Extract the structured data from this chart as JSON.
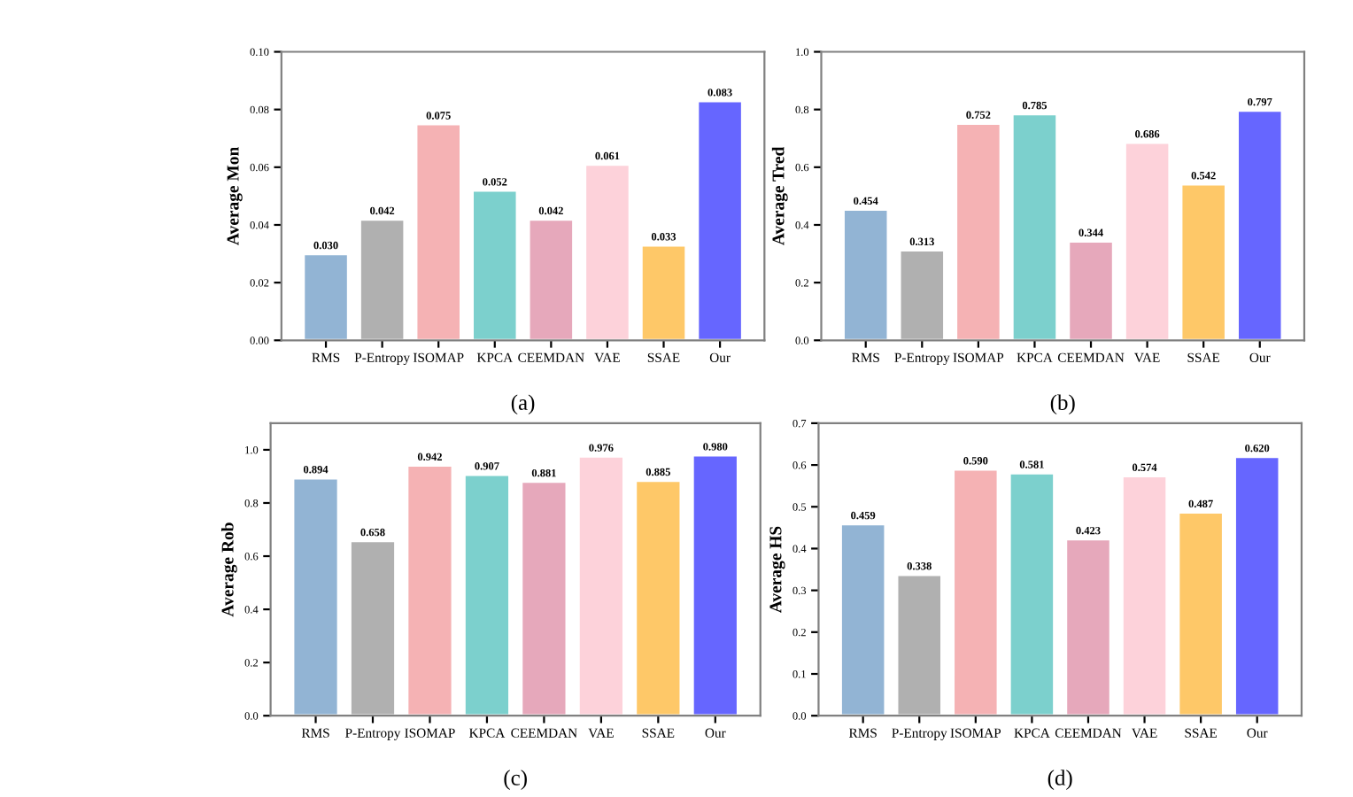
{
  "chart_data": [
    {
      "type": "bar",
      "xlabel": "(a)",
      "ylabel": "Average Mon",
      "categories": [
        "RMS",
        "P-Entropy",
        "ISOMAP",
        "KPCA",
        "CEEMDAN",
        "VAE",
        "SSAE",
        "Our"
      ],
      "values": [
        0.03,
        0.042,
        0.075,
        0.052,
        0.042,
        0.061,
        0.033,
        0.083
      ],
      "colors": [
        "#92b4d4",
        "#b0b0b0",
        "#f5b2b4",
        "#7cd0cd",
        "#e6a8bb",
        "#fdd2da",
        "#fec868",
        "#6666ff"
      ],
      "ylim": [
        0,
        0.1
      ],
      "yticks": [
        {
          "value": 0,
          "label": "0.00"
        },
        0.02,
        0.04,
        0.06,
        0.08,
        {
          "value": 0.1,
          "label": "0.10"
        }
      ],
      "value_labels": [
        "0.030",
        "0.042",
        "0.075",
        "0.052",
        "0.042",
        "0.061",
        "0.033",
        "0.083"
      ]
    },
    {
      "type": "bar",
      "xlabel": "(b)",
      "ylabel": "Average Tred",
      "categories": [
        "RMS",
        "P-Entropy",
        "ISOMAP",
        "KPCA",
        "CEEMDAN",
        "VAE",
        "SSAE",
        "Our"
      ],
      "values": [
        0.454,
        0.313,
        0.752,
        0.785,
        0.344,
        0.686,
        0.542,
        0.797
      ],
      "colors": [
        "#92b4d4",
        "#b0b0b0",
        "#f5b2b4",
        "#7cd0cd",
        "#e6a8bb",
        "#fdd2da",
        "#fec868",
        "#6666ff"
      ],
      "ylim": [
        0,
        1.0
      ],
      "yticks": [
        {
          "value": 0,
          "label": "0.0"
        },
        0.2,
        0.4,
        0.6,
        0.8,
        {
          "value": 1,
          "label": "1.0"
        }
      ],
      "value_labels": [
        "0.454",
        "0.313",
        "0.752",
        "0.785",
        "0.344",
        "0.686",
        "0.542",
        "0.797"
      ]
    },
    {
      "type": "bar",
      "xlabel": "(c)",
      "ylabel": "Average Rob",
      "categories": [
        "RMS",
        "P-Entropy",
        "ISOMAP",
        "KPCA",
        "CEEMDAN",
        "VAE",
        "SSAE",
        "Our"
      ],
      "values": [
        0.894,
        0.658,
        0.942,
        0.907,
        0.881,
        0.976,
        0.885,
        0.98
      ],
      "colors": [
        "#92b4d4",
        "#b0b0b0",
        "#f5b2b4",
        "#7cd0cd",
        "#e6a8bb",
        "#fdd2da",
        "#fec868",
        "#6666ff"
      ],
      "ylim": [
        0,
        1.1
      ],
      "yticks": [
        {
          "value": 0,
          "label": "0.0"
        },
        0.2,
        0.4,
        0.6,
        0.8,
        {
          "value": 1,
          "label": "1.0"
        }
      ],
      "value_labels": [
        "0.894",
        "0.658",
        "0.942",
        "0.907",
        "0.881",
        "0.976",
        "0.885",
        "0.980"
      ]
    },
    {
      "type": "bar",
      "xlabel": "(d)",
      "ylabel": "Average HS",
      "categories": [
        "RMS",
        "P-Entropy",
        "ISOMAP",
        "KPCA",
        "CEEMDAN",
        "VAE",
        "SSAE",
        "Our"
      ],
      "values": [
        0.459,
        0.338,
        0.59,
        0.581,
        0.423,
        0.574,
        0.487,
        0.62
      ],
      "colors": [
        "#92b4d4",
        "#b0b0b0",
        "#f5b2b4",
        "#7cd0cd",
        "#e6a8bb",
        "#fdd2da",
        "#fec868",
        "#6666ff"
      ],
      "ylim": [
        0,
        0.7
      ],
      "yticks": [
        {
          "value": 0,
          "label": "0.0"
        },
        0.1,
        0.2,
        0.3,
        0.4,
        0.5,
        0.6,
        0.7
      ],
      "value_labels": [
        "0.459",
        "0.338",
        "0.590",
        "0.581",
        "0.423",
        "0.574",
        "0.487",
        "0.620"
      ]
    }
  ]
}
